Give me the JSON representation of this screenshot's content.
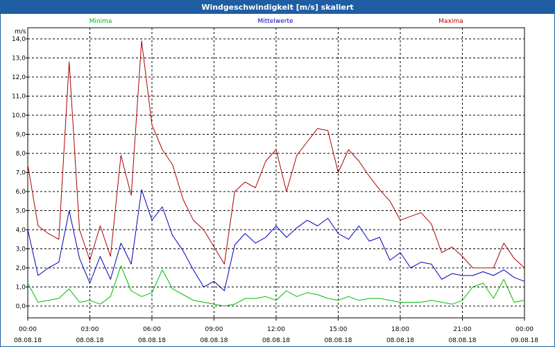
{
  "window": {
    "title": "Windgeschwindigkeit [m/s] skaliert"
  },
  "colors": {
    "min": "#00bb00",
    "mean": "#0000bb",
    "max": "#aa0000",
    "titlebar": "#1f5ea3"
  },
  "chart_data": {
    "type": "line",
    "title": "Windgeschwindigkeit [m/s] skaliert",
    "ylabel": "m/s",
    "xlabel": "",
    "ylim": [
      0,
      14
    ],
    "xlim": [
      0,
      24
    ],
    "y_ticks": [
      "0,0",
      "1,0",
      "2,0",
      "3,0",
      "4,0",
      "5,0",
      "6,0",
      "7,0",
      "8,0",
      "9,0",
      "10,0",
      "11,0",
      "12,0",
      "13,0",
      "14,0"
    ],
    "x_ticks": [
      {
        "time": "00:00",
        "date": "08.08.18"
      },
      {
        "time": "03:00",
        "date": "08.08.18"
      },
      {
        "time": "06:00",
        "date": "08.08.18"
      },
      {
        "time": "09:00",
        "date": "08.08.18"
      },
      {
        "time": "12:00",
        "date": "08.08.18"
      },
      {
        "time": "15:00",
        "date": "08.08.18"
      },
      {
        "time": "18:00",
        "date": "08.08.18"
      },
      {
        "time": "21:00",
        "date": "08.08.18"
      },
      {
        "time": "00:00",
        "date": "09.08.18"
      }
    ],
    "grid": true,
    "series": [
      {
        "name": "Minima",
        "key": "min",
        "x": [
          0,
          0.5,
          1,
          1.5,
          2,
          2.5,
          3,
          3.5,
          4,
          4.5,
          5,
          5.5,
          6,
          6.5,
          7,
          7.5,
          8,
          8.5,
          9,
          9.5,
          10,
          10.5,
          11,
          11.5,
          12,
          12.5,
          13,
          13.5,
          14,
          14.5,
          15,
          15.5,
          16,
          16.5,
          17,
          17.5,
          18,
          18.5,
          19,
          19.5,
          20,
          20.5,
          21,
          21.5,
          22,
          22.5,
          23,
          23.5,
          24
        ],
        "values": [
          1.2,
          0.2,
          0.3,
          0.4,
          0.9,
          0.2,
          0.3,
          0.1,
          0.5,
          2.1,
          0.8,
          0.5,
          0.7,
          1.9,
          0.9,
          0.6,
          0.3,
          0.2,
          0.1,
          0.0,
          0.1,
          0.4,
          0.4,
          0.5,
          0.3,
          0.8,
          0.5,
          0.7,
          0.6,
          0.4,
          0.3,
          0.5,
          0.3,
          0.4,
          0.4,
          0.3,
          0.2,
          0.2,
          0.2,
          0.3,
          0.2,
          0.1,
          0.3,
          1.0,
          1.2,
          0.4,
          1.4,
          0.2,
          0.3
        ]
      },
      {
        "name": "Mittelwerte",
        "key": "mean",
        "x": [
          0,
          0.5,
          1,
          1.5,
          2,
          2.5,
          3,
          3.5,
          4,
          4.5,
          5,
          5.5,
          6,
          6.5,
          7,
          7.5,
          8,
          8.5,
          9,
          9.5,
          10,
          10.5,
          11,
          11.5,
          12,
          12.5,
          13,
          13.5,
          14,
          14.5,
          15,
          15.5,
          16,
          16.5,
          17,
          17.5,
          18,
          18.5,
          19,
          19.5,
          20,
          20.5,
          21,
          21.5,
          22,
          22.5,
          23,
          23.5,
          24
        ],
        "values": [
          4.0,
          1.6,
          2.0,
          2.3,
          5.0,
          2.5,
          1.2,
          2.6,
          1.4,
          3.3,
          2.2,
          6.1,
          4.5,
          5.2,
          3.7,
          2.9,
          1.9,
          1.0,
          1.3,
          0.8,
          3.2,
          3.8,
          3.3,
          3.6,
          4.2,
          3.6,
          4.1,
          4.5,
          4.2,
          4.6,
          3.8,
          3.5,
          4.2,
          3.4,
          3.6,
          2.4,
          2.8,
          2.0,
          2.3,
          2.2,
          1.4,
          1.7,
          1.6,
          1.6,
          1.8,
          1.6,
          1.9,
          1.5,
          1.3
        ]
      },
      {
        "name": "Maxima",
        "key": "max",
        "x": [
          0,
          0.5,
          1,
          1.5,
          2,
          2.5,
          3,
          3.5,
          4,
          4.5,
          5,
          5.5,
          6,
          6.5,
          7,
          7.5,
          8,
          8.5,
          9,
          9.5,
          10,
          10.5,
          11,
          11.5,
          12,
          12.5,
          13,
          13.5,
          14,
          14.5,
          15,
          15.5,
          16,
          16.5,
          17,
          17.5,
          18,
          18.5,
          19,
          19.5,
          20,
          20.5,
          21,
          21.5,
          22,
          22.5,
          23,
          23.5,
          24
        ],
        "values": [
          7.4,
          4.2,
          3.8,
          3.5,
          12.8,
          4.0,
          2.4,
          4.2,
          2.6,
          7.9,
          5.8,
          13.9,
          9.5,
          8.2,
          7.4,
          5.6,
          4.5,
          4.0,
          3.1,
          2.2,
          6.0,
          6.5,
          6.2,
          7.6,
          8.2,
          6.0,
          7.9,
          8.6,
          9.3,
          9.2,
          7.0,
          8.2,
          7.6,
          6.8,
          6.1,
          5.5,
          4.5,
          4.7,
          4.9,
          4.3,
          2.8,
          3.1,
          2.6,
          2.0,
          2.0,
          2.0,
          3.3,
          2.5,
          2.0
        ]
      }
    ]
  }
}
